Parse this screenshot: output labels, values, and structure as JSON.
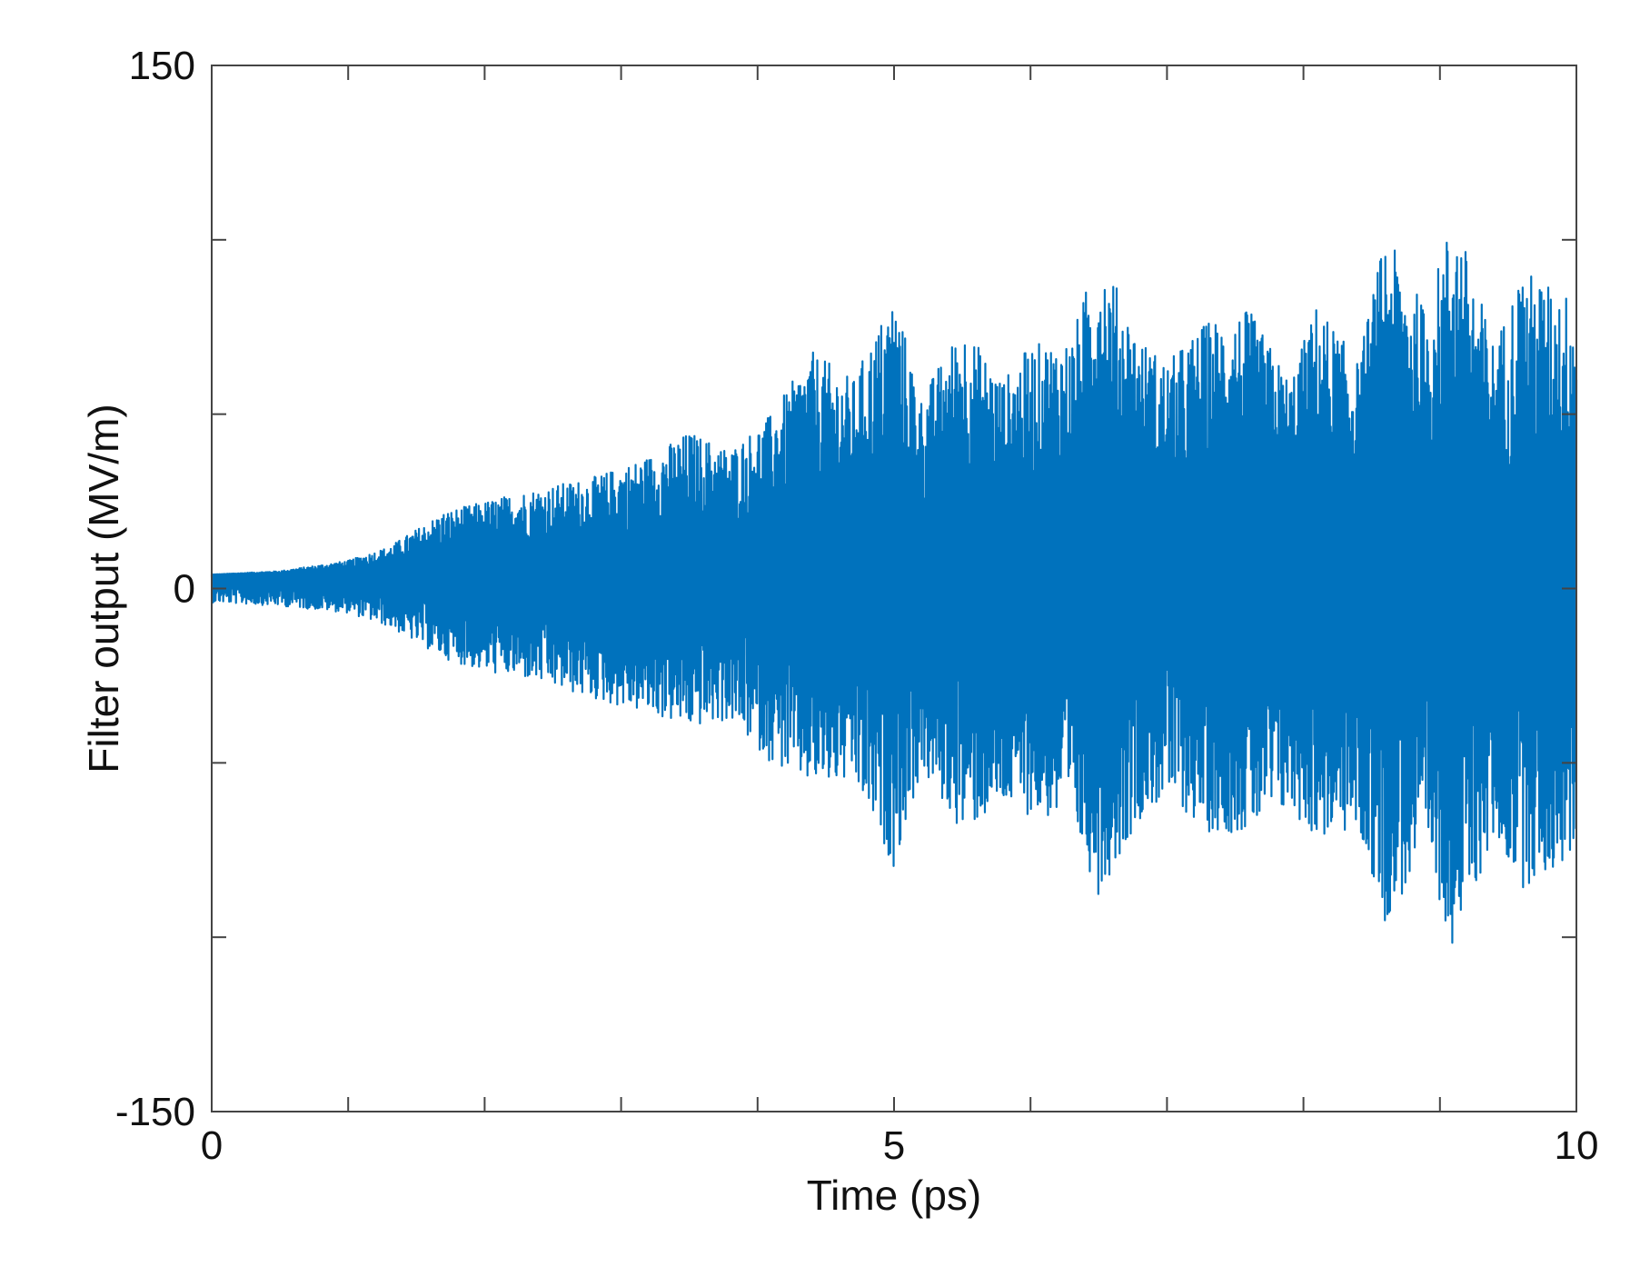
{
  "chart_data": {
    "type": "line",
    "title": "",
    "xlabel": "Time (ps)",
    "ylabel": "Filter output (MV/m)",
    "xlim": [
      0,
      10
    ],
    "ylim": [
      -150,
      150
    ],
    "x_ticks": [
      0,
      1,
      2,
      3,
      4,
      5,
      6,
      7,
      8,
      9,
      10
    ],
    "y_ticks": [
      -150,
      -100,
      -50,
      0,
      50,
      100,
      150
    ],
    "x_tick_labels": [
      {
        "value": 0,
        "label": "0"
      },
      {
        "value": 5,
        "label": "5"
      },
      {
        "value": 10,
        "label": "10"
      }
    ],
    "y_tick_labels": [
      {
        "value": 150,
        "label": "150"
      },
      {
        "value": 0,
        "label": "0"
      },
      {
        "value": -150,
        "label": "-150"
      }
    ],
    "grid": false,
    "legend": "none",
    "series": [
      {
        "color": "#0072BD",
        "offset": 4,
        "envelope_time": [
          0,
          0.5,
          1.0,
          1.3,
          1.7,
          2.0,
          2.3,
          2.8,
          3.2,
          3.5,
          3.8,
          4.1,
          4.4,
          4.7,
          5.0,
          5.2,
          5.5,
          5.8,
          6.0,
          6.3,
          6.5,
          6.8,
          7.0,
          7.3,
          7.6,
          7.9,
          8.1,
          8.4,
          8.6,
          8.9,
          9.1,
          9.4,
          9.6,
          9.9,
          10.0
        ],
        "envelope_upper": [
          4,
          5,
          8,
          12,
          22,
          25,
          28,
          32,
          38,
          45,
          40,
          50,
          68,
          60,
          85,
          55,
          76,
          60,
          70,
          72,
          98,
          72,
          65,
          77,
          80,
          60,
          82,
          65,
          102,
          80,
          109,
          70,
          92,
          85,
          85
        ],
        "envelope_lower": [
          -4,
          -5,
          -7,
          -11,
          -20,
          -24,
          -26,
          -32,
          -36,
          -40,
          -38,
          -50,
          -57,
          -56,
          -80,
          -53,
          -70,
          -63,
          -65,
          -68,
          -88,
          -66,
          -60,
          -70,
          -70,
          -64,
          -72,
          -70,
          -96,
          -78,
          -103,
          -72,
          -86,
          -80,
          -75
        ]
      }
    ]
  }
}
